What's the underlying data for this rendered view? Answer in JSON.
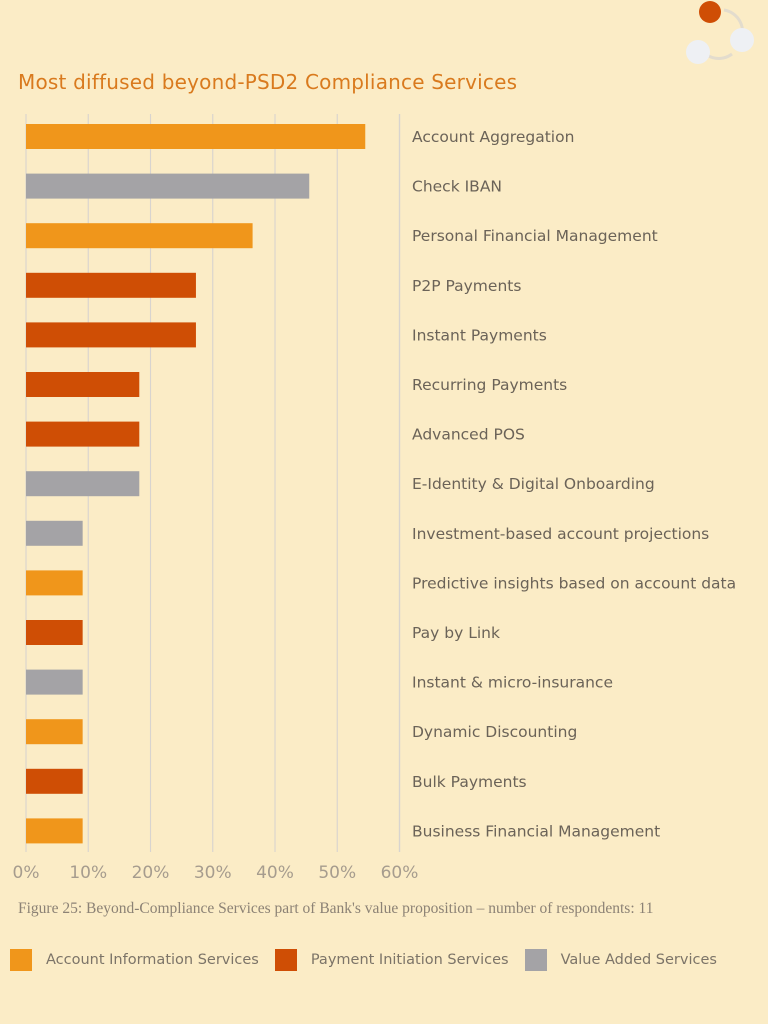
{
  "colors": {
    "background": "#fbecc6",
    "title": "#d97a1e",
    "grid": "#d8d4cf",
    "ais": "#f0961b",
    "pis": "#cf4e05",
    "vas": "#a4a3a6"
  },
  "header": {
    "logo_icon": "three-circle-cycle-logo"
  },
  "chart_data": {
    "type": "bar",
    "orientation": "horizontal",
    "title": "Most diffused beyond-PSD2 Compliance Services",
    "xlim": [
      0,
      60
    ],
    "x_ticks": [
      0,
      10,
      20,
      30,
      40,
      50,
      60
    ],
    "x_tick_labels": [
      "0%",
      "10%",
      "20%",
      "30%",
      "40%",
      "50%",
      "60%"
    ],
    "grid": true,
    "categories": [
      "Account Aggregation",
      "Check IBAN",
      "Personal Financial Management",
      "P2P Payments",
      "Instant Payments",
      "Recurring Payments",
      "Advanced POS",
      "E-Identity & Digital Onboarding",
      "Investment-based account projections",
      "Predictive insights based on account data",
      "Pay by Link",
      "Instant & micro-insurance",
      "Dynamic Discounting",
      "Bulk Payments",
      "Business Financial Management"
    ],
    "values": [
      54.5,
      45.5,
      36.4,
      27.3,
      27.3,
      18.2,
      18.2,
      18.2,
      9.1,
      9.1,
      9.1,
      9.1,
      9.1,
      9.1,
      9.1
    ],
    "groups": [
      "ais",
      "vas",
      "ais",
      "pis",
      "pis",
      "pis",
      "pis",
      "vas",
      "vas",
      "ais",
      "pis",
      "vas",
      "ais",
      "pis",
      "ais"
    ],
    "legend": [
      {
        "key": "ais",
        "label": "Account Information Services"
      },
      {
        "key": "pis",
        "label": "Payment Initiation Services"
      },
      {
        "key": "vas",
        "label": "Value Added Services"
      }
    ]
  },
  "caption": "Figure 25: Beyond-Compliance Services part of Bank's value proposition – number of respondents: 11"
}
